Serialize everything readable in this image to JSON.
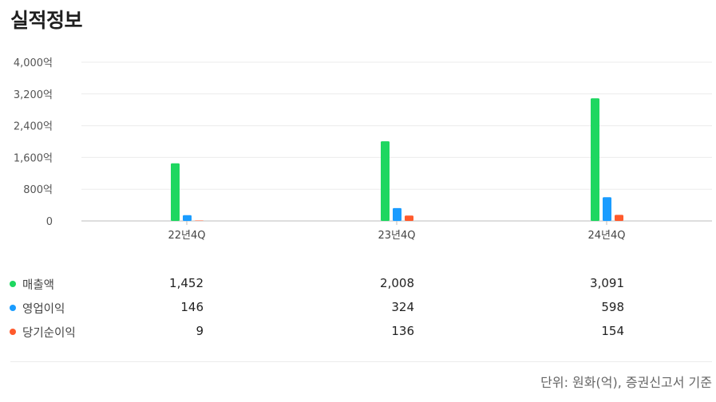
{
  "title": "실적정보",
  "footnote": "단위: 원화(억), 증권신고서 기준",
  "colors": {
    "sales": "#1ed760",
    "op": "#1a9cff",
    "net": "#ff5a2c"
  },
  "chart_data": {
    "type": "bar",
    "categories": [
      "22년4Q",
      "23년4Q",
      "24년4Q"
    ],
    "series": [
      {
        "name": "매출액",
        "values": [
          1452,
          2008,
          3091
        ]
      },
      {
        "name": "영업이익",
        "values": [
          146,
          324,
          598
        ]
      },
      {
        "name": "당기순이익",
        "values": [
          9,
          136,
          154
        ]
      }
    ],
    "yticks": [
      "0",
      "800억",
      "1,600억",
      "2,400억",
      "3,200억",
      "4,000억"
    ],
    "ylim": [
      0,
      4000
    ],
    "grid": true
  },
  "table": {
    "rows": [
      {
        "label": "매출액",
        "values": [
          "1,452",
          "2,008",
          "3,091"
        ]
      },
      {
        "label": "영업이익",
        "values": [
          "146",
          "324",
          "598"
        ]
      },
      {
        "label": "당기순이익",
        "values": [
          "9",
          "136",
          "154"
        ]
      }
    ]
  }
}
